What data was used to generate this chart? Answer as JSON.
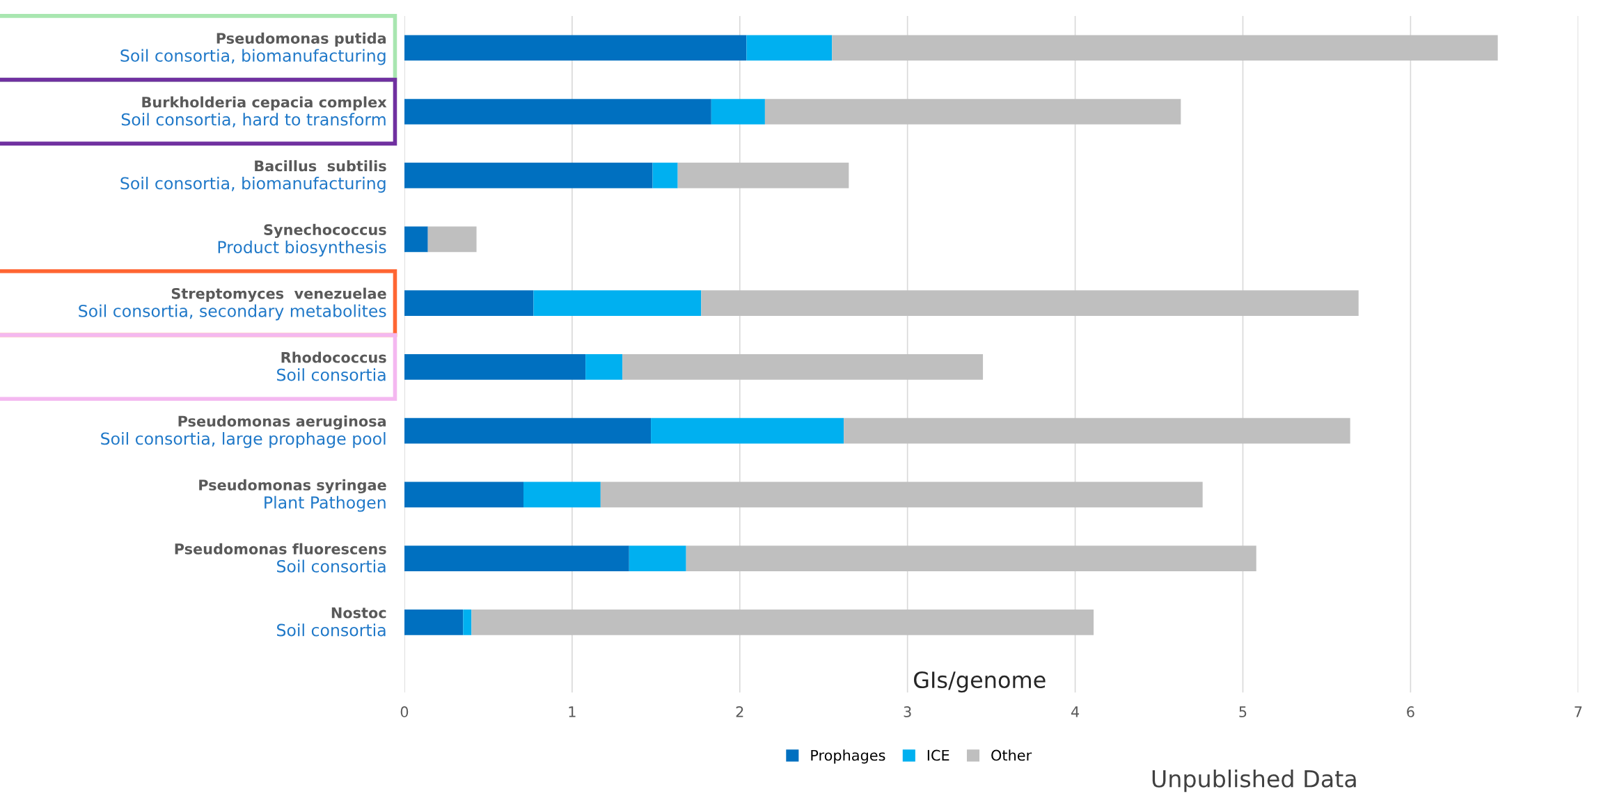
{
  "chart_data": {
    "type": "bar",
    "orientation": "horizontal",
    "stacked": true,
    "categories": [
      "Pseudomonas putida\nSoil consortia, biomanufacturing",
      "Burkholderia cepacia complex\nSoil consortia, hard to transform",
      "Bacillus  subtilis\nSoil consortia, biomanufacturing",
      "Synechococcus\nProduct biosynthesis",
      "Streptomyces  venezuelae\nSoil consortia, secondary metabolites",
      "Rhodococcus\nSoil consortia",
      "Pseudomonas aeruginosa\nSoil consortia, large prophage pool",
      "Pseudomonas syringae\nPlant Pathogen",
      "Pseudomonas fluorescens\nSoil consortia",
      "Nostoc\nSoil consortia"
    ],
    "series": [
      {
        "name": "Prophages",
        "color": "#0070c0",
        "values": [
          2.04,
          1.83,
          1.48,
          0.14,
          0.77,
          1.08,
          1.47,
          0.71,
          1.34,
          0.35
        ]
      },
      {
        "name": "ICE",
        "color": "#00b0f0",
        "values": [
          0.51,
          0.32,
          0.15,
          0,
          1.0,
          0.22,
          1.15,
          0.46,
          0.34,
          0.05
        ]
      },
      {
        "name": "Other",
        "color": "#bfbfbf",
        "values": [
          3.97,
          2.48,
          1.02,
          0.29,
          3.92,
          2.15,
          3.02,
          3.59,
          3.4,
          3.71
        ]
      }
    ],
    "xlabel": "GIs/genome",
    "xlim": [
      0,
      7
    ],
    "xticks": [
      0,
      1,
      2,
      3,
      4,
      5,
      6,
      7
    ],
    "grid": "x",
    "legend": "bottom",
    "annotations": [
      "Unpublished Data"
    ]
  }
}
